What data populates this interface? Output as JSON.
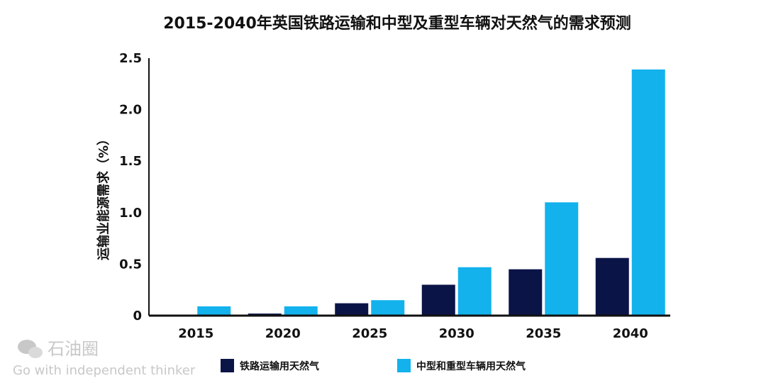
{
  "chart_data": {
    "type": "bar",
    "title": "2015-2040年英国铁路运输和中型及重型车辆对天然气的需求预测",
    "xlabel": "",
    "ylabel": "运输业能源需求（%）",
    "categories": [
      "2015",
      "2020",
      "2025",
      "2030",
      "2035",
      "2040"
    ],
    "ylim": [
      0,
      2.5
    ],
    "yticks": [
      "0",
      "0.5",
      "1.0",
      "1.5",
      "2.0",
      "2.5"
    ],
    "ytick_values": [
      0,
      0.5,
      1.0,
      1.5,
      2.0,
      2.5
    ],
    "grid": false,
    "legend_position": "bottom",
    "series": [
      {
        "name": "铁路运输用天然气",
        "color": "#0b1446",
        "values": [
          0,
          0.02,
          0.12,
          0.3,
          0.45,
          0.56
        ]
      },
      {
        "name": "中型和重型车辆用天然气",
        "color": "#13b2ec",
        "values": [
          0.09,
          0.09,
          0.15,
          0.47,
          1.1,
          2.39
        ]
      }
    ]
  },
  "watermark": {
    "brand": "石油圈",
    "slogan": "Go with independent thinker",
    "icon": "wechat-icon"
  }
}
